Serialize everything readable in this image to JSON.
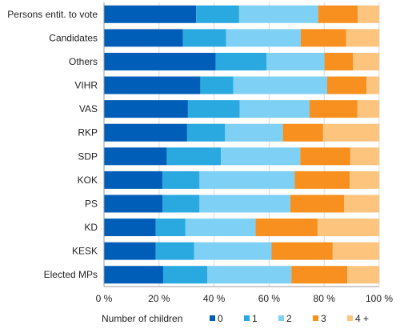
{
  "chart_data": {
    "type": "bar",
    "orientation": "horizontal",
    "stacked": "percent",
    "categories": [
      "Persons entit. to vote",
      "Candidates",
      "Others",
      "VIHR",
      "VAS",
      "RKP",
      "SDP",
      "KOK",
      "PS",
      "KD",
      "KESK",
      "Elected MPs"
    ],
    "series": [
      {
        "name": "0",
        "color": "#005EB8",
        "values": [
          33.5,
          28.7,
          40.6,
          35.0,
          30.5,
          30.2,
          22.8,
          21.2,
          21.3,
          18.8,
          18.8,
          21.5
        ]
      },
      {
        "name": "1",
        "color": "#29A9E0",
        "values": [
          15.6,
          15.7,
          18.5,
          12.0,
          18.8,
          13.8,
          19.7,
          13.5,
          13.4,
          10.8,
          13.9,
          16.0
        ]
      },
      {
        "name": "2",
        "color": "#7FD0F5",
        "values": [
          28.7,
          27.1,
          21.0,
          34.1,
          25.4,
          21.0,
          28.8,
          34.6,
          33.0,
          25.5,
          28.2,
          30.6
        ]
      },
      {
        "name": "3",
        "color": "#F7901E",
        "values": [
          14.4,
          16.5,
          10.4,
          14.3,
          17.4,
          14.6,
          18.2,
          20.0,
          19.6,
          22.5,
          22.2,
          20.3
        ]
      },
      {
        "name": "4 +",
        "color": "#FDC47E",
        "values": [
          7.8,
          12.0,
          9.5,
          4.6,
          7.9,
          20.4,
          10.5,
          10.7,
          12.7,
          22.4,
          16.9,
          11.6
        ]
      }
    ],
    "xlabel": "Number of children",
    "x_ticks": [
      "0 %",
      "20 %",
      "40 %",
      "60 %",
      "80 %",
      "100 %"
    ],
    "xlim": [
      0,
      100
    ],
    "grid": true,
    "legend_position": "bottom",
    "legend_title": "Number of children"
  }
}
